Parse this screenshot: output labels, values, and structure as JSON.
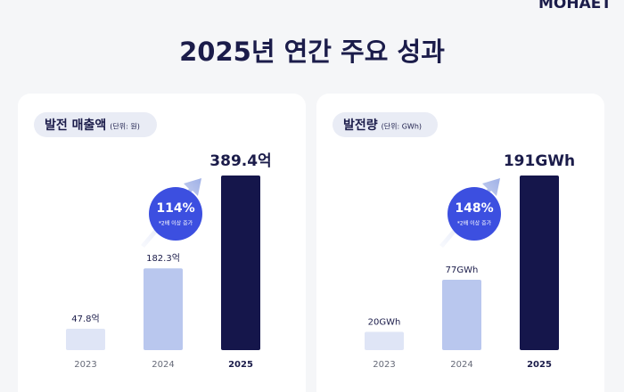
{
  "logo": "MOHAET",
  "title": "2025년 연간 주요 성과",
  "chart_data": [
    {
      "type": "bar",
      "title": "발전 매출액",
      "subtitle": "(단위: 원)",
      "categories": [
        "2023",
        "2024",
        "2025"
      ],
      "values": [
        47.8,
        182.3,
        389.4
      ],
      "value_labels": [
        "47.8억",
        "182.3억",
        "389.4억"
      ],
      "colors": [
        "#dfe5f6",
        "#b9c7ee",
        "#15164b"
      ],
      "annotations": [
        "114%",
        "*2배 이상 증가"
      ]
    },
    {
      "type": "bar",
      "title": "발전량",
      "subtitle": "(단위: GWh)",
      "categories": [
        "2023",
        "2024",
        "2025"
      ],
      "values": [
        20,
        77,
        191
      ],
      "value_labels": [
        "20GWh",
        "77GWh",
        "191GWh"
      ],
      "colors": [
        "#dfe5f6",
        "#b9c7ee",
        "#15164b"
      ],
      "annotations": [
        "148%",
        "*2배 이상 증가"
      ]
    }
  ]
}
